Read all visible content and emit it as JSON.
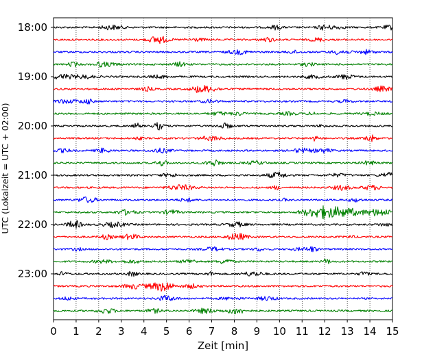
{
  "chart_data": {
    "type": "line",
    "title": "",
    "xlabel": "Zeit  [min]",
    "ylabel": "UTC (Lokalzeit = UTC + 02:00)",
    "xlim": [
      0,
      15
    ],
    "x_ticks": [
      "0",
      "1",
      "2",
      "3",
      "4",
      "5",
      "6",
      "7",
      "8",
      "9",
      "10",
      "11",
      "12",
      "13",
      "14",
      "15"
    ],
    "y_ticks": [
      "18:00",
      "19:00",
      "20:00",
      "21:00",
      "22:00",
      "23:00"
    ],
    "trace_interval_minutes": 15,
    "first_trace": "18:00",
    "last_trace": "23:45",
    "trace_colors": [
      "#000000",
      "#ff0000",
      "#0000ff",
      "#008000"
    ],
    "grid": "vertical dotted at each minute",
    "event": {
      "trace": "21:45",
      "start_min": 10.8,
      "peak_min": 12.0,
      "end_min": 13.8,
      "note": "larger amplitude wiggles"
    }
  }
}
